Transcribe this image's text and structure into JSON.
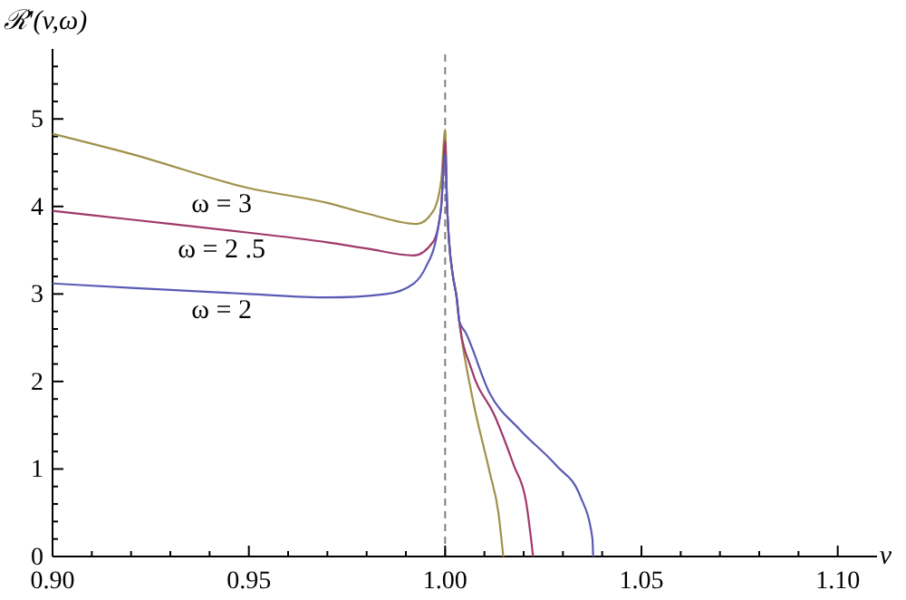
{
  "chart_data": {
    "type": "line",
    "xlabel": "v",
    "ylabel": "ℛ'(v,ω)",
    "xlim": [
      0.9,
      1.11
    ],
    "ylim": [
      0,
      5.8
    ],
    "xticks": [
      {
        "value": 0.9,
        "label": "0.90"
      },
      {
        "value": 0.91,
        "label": null
      },
      {
        "value": 0.92,
        "label": null
      },
      {
        "value": 0.93,
        "label": null
      },
      {
        "value": 0.94,
        "label": null
      },
      {
        "value": 0.95,
        "label": "0.95"
      },
      {
        "value": 0.96,
        "label": null
      },
      {
        "value": 0.97,
        "label": null
      },
      {
        "value": 0.98,
        "label": null
      },
      {
        "value": 0.99,
        "label": null
      },
      {
        "value": 1.0,
        "label": "1.00"
      },
      {
        "value": 1.01,
        "label": null
      },
      {
        "value": 1.02,
        "label": null
      },
      {
        "value": 1.03,
        "label": null
      },
      {
        "value": 1.04,
        "label": null
      },
      {
        "value": 1.05,
        "label": "1.05"
      },
      {
        "value": 1.06,
        "label": null
      },
      {
        "value": 1.07,
        "label": null
      },
      {
        "value": 1.08,
        "label": null
      },
      {
        "value": 1.09,
        "label": null
      },
      {
        "value": 1.1,
        "label": "1.10"
      }
    ],
    "yticks": [
      0,
      {
        "value": 0.2,
        "label": null
      },
      {
        "value": 0.4,
        "label": null
      },
      {
        "value": 0.6,
        "label": null
      },
      {
        "value": 0.8,
        "label": null
      },
      1,
      {
        "value": 1.2,
        "label": null
      },
      {
        "value": 1.4,
        "label": null
      },
      {
        "value": 1.6,
        "label": null
      },
      {
        "value": 1.8,
        "label": null
      },
      2,
      {
        "value": 2.2,
        "label": null
      },
      {
        "value": 2.4,
        "label": null
      },
      {
        "value": 2.6,
        "label": null
      },
      {
        "value": 2.8,
        "label": null
      },
      3,
      {
        "value": 3.2,
        "label": null
      },
      {
        "value": 3.4,
        "label": null
      },
      {
        "value": 3.6,
        "label": null
      },
      {
        "value": 3.8,
        "label": null
      },
      4,
      {
        "value": 4.2,
        "label": null
      },
      {
        "value": 4.4,
        "label": null
      },
      {
        "value": 4.6,
        "label": null
      },
      {
        "value": 4.8,
        "label": null
      },
      5,
      {
        "value": 5.2,
        "label": null
      },
      {
        "value": 5.4,
        "label": null
      },
      {
        "value": 5.6,
        "label": null
      }
    ],
    "grid": false,
    "line_style": "solid",
    "marker": "none",
    "ref_lines": [
      {
        "axis": "x",
        "value": 1.0,
        "color": "#808080",
        "line_style": "dashed"
      }
    ],
    "series": [
      {
        "name": "ω = 3",
        "color": "#a0914a",
        "x": [
          0.9,
          0.92,
          0.95,
          0.97,
          0.98,
          0.9928,
          0.997,
          0.999,
          1.0,
          1.0005,
          1.001,
          1.002,
          1.0029,
          1.0036,
          1.0067,
          1.0113,
          1.0136,
          1.0148
        ],
        "values": [
          4.83,
          4.6,
          4.21,
          4.04,
          3.92,
          3.8,
          3.95,
          4.3,
          4.88,
          4.0,
          3.6,
          3.2,
          2.97,
          2.69,
          1.87,
          0.97,
          0.49,
          0
        ]
      },
      {
        "name": "ω = 2 .5",
        "color": "#a0386b",
        "x": [
          0.9,
          0.92,
          0.95,
          0.97,
          0.98,
          0.992,
          0.997,
          0.999,
          1.0,
          1.0005,
          1.001,
          1.002,
          1.0029,
          1.0036,
          1.0067,
          1.0128,
          1.0175,
          1.0206,
          1.0224
        ],
        "values": [
          3.95,
          3.85,
          3.7,
          3.59,
          3.52,
          3.44,
          3.6,
          4.0,
          4.75,
          4.0,
          3.6,
          3.2,
          2.97,
          2.69,
          2.14,
          1.59,
          1.04,
          0.63,
          0
        ]
      },
      {
        "name": "ω = 2",
        "color": "#5a5ab5",
        "x": [
          0.9,
          0.92,
          0.95,
          0.97,
          0.985,
          0.992,
          0.995,
          0.998,
          0.999,
          1.0,
          1.0005,
          1.001,
          1.002,
          1.0029,
          1.0036,
          1.0052,
          1.0113,
          1.019,
          1.0283,
          1.0344,
          1.0375,
          1.0377
        ],
        "values": [
          3.12,
          3.07,
          3.0,
          2.96,
          3.0,
          3.12,
          3.3,
          3.7,
          4.0,
          4.6,
          4.0,
          3.6,
          3.2,
          2.97,
          2.69,
          2.56,
          1.87,
          1.45,
          1.04,
          0.69,
          0.21,
          0
        ]
      }
    ]
  }
}
